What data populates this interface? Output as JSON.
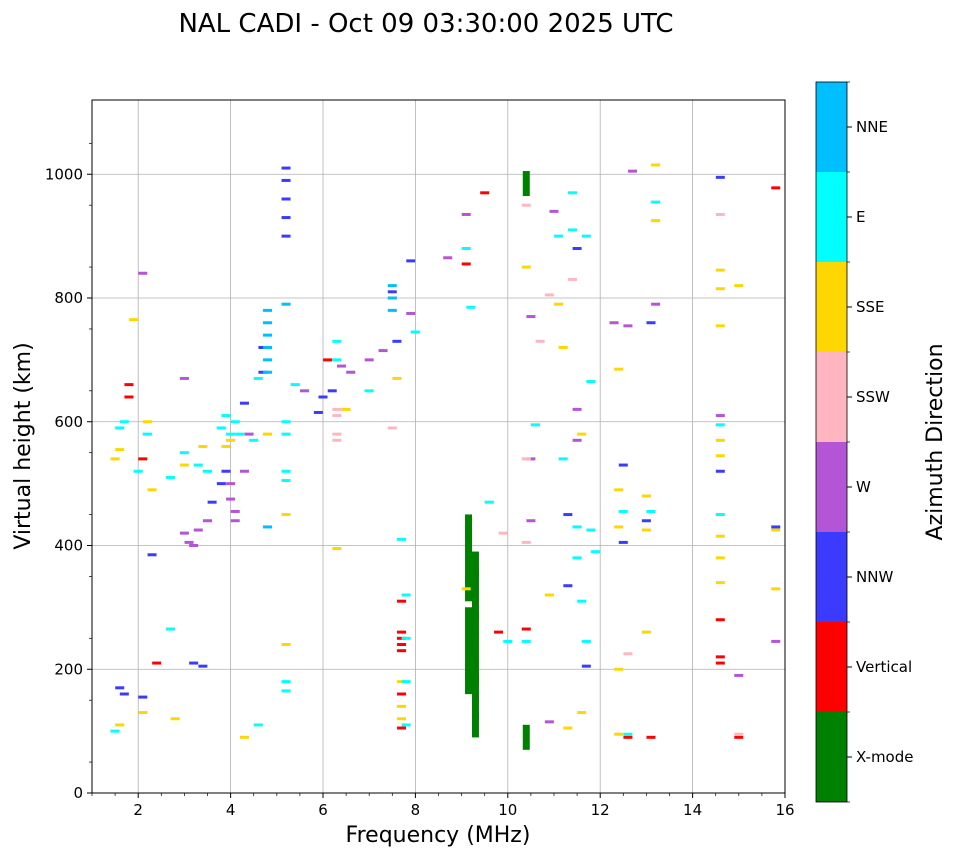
{
  "chart_data": {
    "type": "scatter",
    "title": "NAL CADI - Oct 09 03:30:00 2025 UTC",
    "xlabel": "Frequency (MHz)",
    "ylabel": "Virtual height (km)",
    "xlim": [
      1,
      16
    ],
    "ylim": [
      0,
      1120
    ],
    "xticks": [
      2,
      4,
      6,
      8,
      10,
      12,
      14,
      16
    ],
    "yticks": [
      0,
      200,
      400,
      600,
      800,
      1000
    ],
    "grid": true,
    "colorbar": {
      "label": "Azimuth Direction",
      "categories": [
        {
          "name": "X-mode",
          "color": "#008000"
        },
        {
          "name": "Vertical",
          "color": "#ff0000"
        },
        {
          "name": "NNW",
          "color": "#3b3bff"
        },
        {
          "name": "W",
          "color": "#b455d6"
        },
        {
          "name": "SSW",
          "color": "#ffb6c1"
        },
        {
          "name": "SSE",
          "color": "#ffd700"
        },
        {
          "name": "E",
          "color": "#00ffff"
        },
        {
          "name": "NNE",
          "color": "#00bfff"
        }
      ]
    },
    "series": [
      {
        "name": "X-mode",
        "points": [
          [
            9.15,
            180
          ],
          [
            9.15,
            200
          ],
          [
            9.15,
            240
          ],
          [
            9.15,
            280
          ],
          [
            9.15,
            330
          ],
          [
            9.15,
            360
          ],
          [
            9.15,
            400
          ],
          [
            9.15,
            430
          ],
          [
            9.3,
            110
          ],
          [
            9.3,
            140
          ],
          [
            9.3,
            170
          ],
          [
            9.3,
            195
          ],
          [
            9.3,
            230
          ],
          [
            9.3,
            270
          ],
          [
            9.3,
            300
          ],
          [
            9.3,
            340
          ],
          [
            9.3,
            370
          ],
          [
            10.4,
            985
          ],
          [
            10.4,
            90
          ]
        ]
      },
      {
        "name": "Vertical",
        "points": [
          [
            7.7,
            230
          ],
          [
            7.7,
            240
          ],
          [
            7.7,
            250
          ],
          [
            7.7,
            260
          ],
          [
            7.7,
            310
          ],
          [
            7.7,
            160
          ],
          [
            7.7,
            105
          ],
          [
            1.8,
            660
          ],
          [
            1.8,
            640
          ],
          [
            2.1,
            540
          ],
          [
            2.4,
            210
          ],
          [
            6.1,
            700
          ],
          [
            9.1,
            855
          ],
          [
            9.5,
            970
          ],
          [
            9.8,
            260
          ],
          [
            10.4,
            265
          ],
          [
            14.6,
            280
          ],
          [
            14.6,
            220
          ],
          [
            14.6,
            210
          ],
          [
            15,
            90
          ],
          [
            15.8,
            978
          ],
          [
            12.6,
            90
          ],
          [
            13.1,
            90
          ]
        ]
      },
      {
        "name": "NNW",
        "points": [
          [
            5.2,
            900
          ],
          [
            5.2,
            930
          ],
          [
            5.2,
            960
          ],
          [
            5.2,
            990
          ],
          [
            5.2,
            1010
          ],
          [
            4.7,
            720
          ],
          [
            4.7,
            680
          ],
          [
            4.3,
            630
          ],
          [
            3.9,
            520
          ],
          [
            3.8,
            500
          ],
          [
            3.6,
            470
          ],
          [
            3.2,
            210
          ],
          [
            3.4,
            205
          ],
          [
            2.3,
            385
          ],
          [
            1.6,
            170
          ],
          [
            1.7,
            160
          ],
          [
            2.1,
            155
          ],
          [
            6.0,
            640
          ],
          [
            6.2,
            650
          ],
          [
            5.9,
            615
          ],
          [
            7.5,
            810
          ],
          [
            7.6,
            730
          ],
          [
            7.9,
            860
          ],
          [
            11.3,
            450
          ],
          [
            11.3,
            335
          ],
          [
            11.5,
            880
          ],
          [
            12.5,
            530
          ],
          [
            12.5,
            405
          ],
          [
            13.0,
            440
          ],
          [
            13.1,
            760
          ],
          [
            14.6,
            520
          ],
          [
            14.6,
            995
          ],
          [
            15.8,
            430
          ],
          [
            11.7,
            205
          ]
        ]
      },
      {
        "name": "W",
        "points": [
          [
            2.1,
            840
          ],
          [
            3.0,
            420
          ],
          [
            3.1,
            405
          ],
          [
            3.2,
            400
          ],
          [
            3.3,
            425
          ],
          [
            3.5,
            440
          ],
          [
            3.0,
            670
          ],
          [
            4.0,
            475
          ],
          [
            4.1,
            455
          ],
          [
            4.1,
            440
          ],
          [
            4.0,
            500
          ],
          [
            4.3,
            520
          ],
          [
            4.4,
            580
          ],
          [
            5.6,
            650
          ],
          [
            6.4,
            690
          ],
          [
            6.6,
            680
          ],
          [
            7.0,
            700
          ],
          [
            7.3,
            715
          ],
          [
            7.9,
            775
          ],
          [
            8.7,
            865
          ],
          [
            9.1,
            935
          ],
          [
            10.5,
            540
          ],
          [
            10.5,
            440
          ],
          [
            10.5,
            770
          ],
          [
            11.0,
            940
          ],
          [
            11.5,
            570
          ],
          [
            11.5,
            620
          ],
          [
            12.3,
            760
          ],
          [
            12.6,
            755
          ],
          [
            12.7,
            1005
          ],
          [
            13.2,
            790
          ],
          [
            14.6,
            610
          ],
          [
            15.0,
            190
          ],
          [
            15.8,
            245
          ],
          [
            10.9,
            115
          ]
        ]
      },
      {
        "name": "SSW",
        "points": [
          [
            6.3,
            610
          ],
          [
            6.3,
            620
          ],
          [
            6.3,
            570
          ],
          [
            6.3,
            580
          ],
          [
            7.5,
            590
          ],
          [
            10.4,
            405
          ],
          [
            10.4,
            540
          ],
          [
            10.4,
            950
          ],
          [
            10.7,
            730
          ],
          [
            10.9,
            805
          ],
          [
            11.4,
            830
          ],
          [
            9.9,
            420
          ],
          [
            14.6,
            935
          ],
          [
            15.0,
            95
          ],
          [
            12.6,
            225
          ]
        ]
      },
      {
        "name": "SSE",
        "points": [
          [
            1.5,
            540
          ],
          [
            1.6,
            555
          ],
          [
            1.9,
            765
          ],
          [
            2.2,
            600
          ],
          [
            2.3,
            490
          ],
          [
            3.0,
            530
          ],
          [
            3.4,
            560
          ],
          [
            3.9,
            560
          ],
          [
            4.0,
            570
          ],
          [
            4.8,
            580
          ],
          [
            5.2,
            450
          ],
          [
            5.2,
            240
          ],
          [
            6.3,
            395
          ],
          [
            6.5,
            620
          ],
          [
            7.6,
            670
          ],
          [
            7.7,
            180
          ],
          [
            7.7,
            140
          ],
          [
            7.7,
            120
          ],
          [
            9.1,
            330
          ],
          [
            10.4,
            850
          ],
          [
            10.9,
            320
          ],
          [
            11.1,
            790
          ],
          [
            11.2,
            720
          ],
          [
            12.4,
            685
          ],
          [
            12.4,
            490
          ],
          [
            12.4,
            430
          ],
          [
            12.4,
            200
          ],
          [
            12.4,
            95
          ],
          [
            13.0,
            480
          ],
          [
            13.0,
            425
          ],
          [
            13.0,
            260
          ],
          [
            13.2,
            1015
          ],
          [
            13.2,
            925
          ],
          [
            14.6,
            845
          ],
          [
            14.6,
            815
          ],
          [
            14.6,
            755
          ],
          [
            14.6,
            570
          ],
          [
            14.6,
            545
          ],
          [
            14.6,
            415
          ],
          [
            14.6,
            380
          ],
          [
            14.6,
            340
          ],
          [
            15.0,
            820
          ],
          [
            15.8,
            425
          ],
          [
            15.8,
            330
          ],
          [
            11.6,
            580
          ],
          [
            11.3,
            105
          ],
          [
            11.6,
            130
          ],
          [
            1.6,
            110
          ],
          [
            2.1,
            130
          ],
          [
            2.8,
            120
          ],
          [
            4.3,
            90
          ]
        ]
      },
      {
        "name": "E",
        "points": [
          [
            1.6,
            590
          ],
          [
            1.7,
            600
          ],
          [
            2.0,
            520
          ],
          [
            2.2,
            580
          ],
          [
            2.7,
            510
          ],
          [
            3.0,
            550
          ],
          [
            3.3,
            530
          ],
          [
            3.5,
            520
          ],
          [
            3.8,
            590
          ],
          [
            3.9,
            610
          ],
          [
            4.0,
            580
          ],
          [
            4.1,
            600
          ],
          [
            4.2,
            580
          ],
          [
            4.5,
            570
          ],
          [
            4.6,
            670
          ],
          [
            5.2,
            520
          ],
          [
            5.2,
            505
          ],
          [
            5.2,
            600
          ],
          [
            5.2,
            580
          ],
          [
            5.2,
            180
          ],
          [
            5.2,
            165
          ],
          [
            5.4,
            660
          ],
          [
            6.3,
            730
          ],
          [
            6.3,
            700
          ],
          [
            7.0,
            650
          ],
          [
            7.5,
            800
          ],
          [
            7.7,
            410
          ],
          [
            7.8,
            320
          ],
          [
            7.8,
            250
          ],
          [
            7.8,
            180
          ],
          [
            7.8,
            110
          ],
          [
            8.0,
            745
          ],
          [
            9.1,
            880
          ],
          [
            9.2,
            785
          ],
          [
            9.6,
            470
          ],
          [
            10.0,
            245
          ],
          [
            10.4,
            245
          ],
          [
            10.6,
            595
          ],
          [
            11.1,
            900
          ],
          [
            11.2,
            540
          ],
          [
            11.4,
            970
          ],
          [
            11.4,
            910
          ],
          [
            11.5,
            430
          ],
          [
            11.5,
            380
          ],
          [
            11.6,
            310
          ],
          [
            11.7,
            245
          ],
          [
            11.7,
            900
          ],
          [
            11.8,
            665
          ],
          [
            11.8,
            425
          ],
          [
            11.9,
            390
          ],
          [
            12.5,
            455
          ],
          [
            12.6,
            95
          ],
          [
            13.1,
            455
          ],
          [
            13.2,
            955
          ],
          [
            14.6,
            450
          ],
          [
            14.6,
            595
          ],
          [
            1.5,
            100
          ],
          [
            2.7,
            265
          ],
          [
            4.6,
            110
          ]
        ]
      },
      {
        "name": "NNE",
        "points": [
          [
            4.8,
            680
          ],
          [
            4.8,
            700
          ],
          [
            4.8,
            720
          ],
          [
            4.8,
            740
          ],
          [
            4.8,
            760
          ],
          [
            4.8,
            780
          ],
          [
            5.2,
            790
          ],
          [
            7.5,
            780
          ],
          [
            7.5,
            800
          ],
          [
            7.5,
            820
          ],
          [
            4.8,
            430
          ]
        ]
      }
    ]
  }
}
